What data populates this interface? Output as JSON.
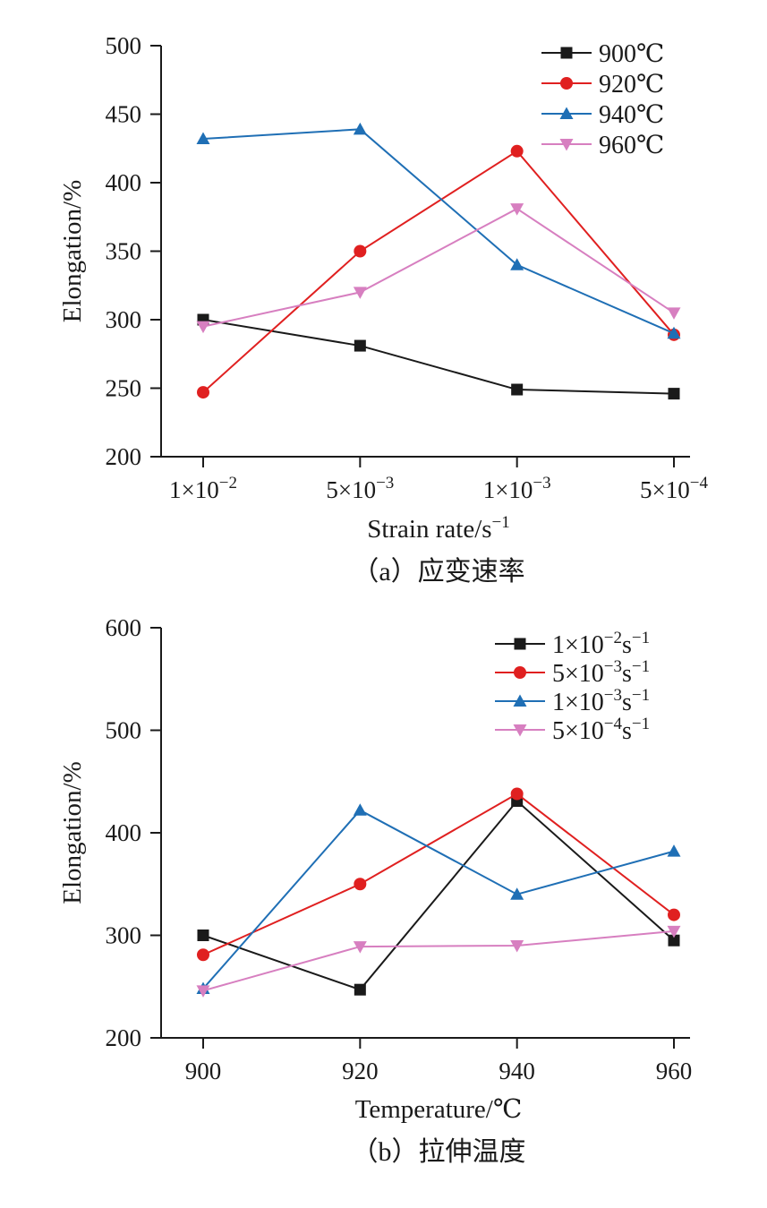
{
  "chart_data": [
    {
      "type": "line",
      "caption": "（a）应变速率",
      "xlabel": "Strain rate/s",
      "xlabel_sup": "−1",
      "ylabel": "Elongation/%",
      "ylim": [
        200,
        500
      ],
      "yticks": [
        "200",
        "250",
        "300",
        "350",
        "400",
        "450",
        "500"
      ],
      "categories": [
        {
          "base": "1×10",
          "exp": "−2"
        },
        {
          "base": "5×10",
          "exp": "−3"
        },
        {
          "base": "1×10",
          "exp": "−3"
        },
        {
          "base": "5×10",
          "exp": "−4"
        }
      ],
      "legend_position": "top-right",
      "series": [
        {
          "label": {
            "base": "900℃"
          },
          "color": "#1a1a1a",
          "marker": "square",
          "values": [
            300,
            281,
            249,
            246
          ]
        },
        {
          "label": {
            "base": "920℃"
          },
          "color": "#e02020",
          "marker": "circle",
          "values": [
            247,
            350,
            423,
            289
          ]
        },
        {
          "label": {
            "base": "940℃"
          },
          "color": "#1f6fb5",
          "marker": "triangle-up",
          "values": [
            432,
            439,
            340,
            290
          ]
        },
        {
          "label": {
            "base": "960℃"
          },
          "color": "#d77fc0",
          "marker": "triangle-down",
          "values": [
            295,
            320,
            381,
            305
          ]
        }
      ]
    },
    {
      "type": "line",
      "caption": "（b）拉伸温度",
      "xlabel": "Temperature/℃",
      "xlabel_sup": "",
      "ylabel": "Elongation/%",
      "ylim": [
        200,
        600
      ],
      "yticks": [
        "200",
        "300",
        "400",
        "500",
        "600"
      ],
      "categories": [
        {
          "base": "900",
          "exp": ""
        },
        {
          "base": "920",
          "exp": ""
        },
        {
          "base": "940",
          "exp": ""
        },
        {
          "base": "960",
          "exp": ""
        }
      ],
      "legend_position": "top-right",
      "series": [
        {
          "label": {
            "base": "1×10",
            "exp": "−2",
            "tail": "s",
            "exp2": "−1"
          },
          "color": "#1a1a1a",
          "marker": "square",
          "values": [
            300,
            247,
            431,
            295
          ]
        },
        {
          "label": {
            "base": "5×10",
            "exp": "−3",
            "tail": "s",
            "exp2": "−1"
          },
          "color": "#e02020",
          "marker": "circle",
          "values": [
            281,
            350,
            438,
            320
          ]
        },
        {
          "label": {
            "base": "1×10",
            "exp": "−3",
            "tail": "s",
            "exp2": "−1"
          },
          "color": "#1f6fb5",
          "marker": "triangle-up",
          "values": [
            248,
            422,
            340,
            382
          ]
        },
        {
          "label": {
            "base": "5×10",
            "exp": "−4",
            "tail": "s",
            "exp2": "−1"
          },
          "color": "#d77fc0",
          "marker": "triangle-down",
          "values": [
            246,
            289,
            290,
            304
          ]
        }
      ]
    }
  ]
}
